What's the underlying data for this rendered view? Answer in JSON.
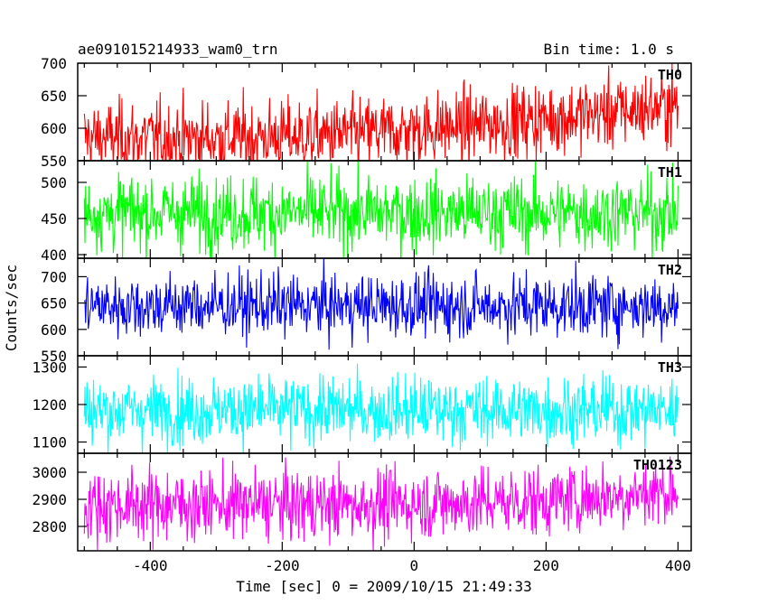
{
  "header": {
    "title": "ae091015214933_wam0_trn",
    "bin_time": "Bin time: 1.0 s"
  },
  "axes": {
    "xlabel": "Time [sec] 0 = 2009/10/15 21:49:33",
    "ylabel": "Counts/sec"
  },
  "chart_data": {
    "type": "line",
    "title": "ae091015214933_wam0_trn",
    "xlabel": "Time [sec] 0 = 2009/10/15 21:49:33",
    "ylabel": "Counts/sec",
    "xlim": [
      -510,
      420
    ],
    "x_ticks": [
      -400,
      -200,
      0,
      200,
      400
    ],
    "x_range": [
      -500,
      400
    ],
    "bin_time_s": 1.0,
    "grid": false,
    "panels": [
      {
        "name": "TH0",
        "color": "#ff0000",
        "ylim": [
          550,
          700
        ],
        "y_ticks": [
          550,
          600,
          650,
          700
        ],
        "trend_x": [
          -500,
          -300,
          -100,
          100,
          300,
          400
        ],
        "trend_y": [
          585,
          585,
          590,
          605,
          625,
          635
        ],
        "spread": 28
      },
      {
        "name": "TH1",
        "color": "#00ff00",
        "ylim": [
          395,
          530
        ],
        "y_ticks": [
          400,
          450,
          500
        ],
        "trend_x": [
          -500,
          400
        ],
        "trend_y": [
          458,
          458
        ],
        "spread": 26
      },
      {
        "name": "TH2",
        "color": "#0000ff",
        "ylim": [
          550,
          735
        ],
        "y_ticks": [
          550,
          600,
          650,
          700
        ],
        "trend_x": [
          -500,
          400
        ],
        "trend_y": [
          645,
          645
        ],
        "spread": 30
      },
      {
        "name": "TH3",
        "color": "#00ffff",
        "ylim": [
          1070,
          1330
        ],
        "y_ticks": [
          1100,
          1200,
          1300
        ],
        "trend_x": [
          -500,
          400
        ],
        "trend_y": [
          1185,
          1185
        ],
        "spread": 45
      },
      {
        "name": "TH0123",
        "color": "#ff00ff",
        "ylim": [
          2710,
          3070
        ],
        "y_ticks": [
          2800,
          2900,
          3000
        ],
        "trend_x": [
          -500,
          -100,
          200,
          400
        ],
        "trend_y": [
          2880,
          2880,
          2895,
          2935
        ],
        "spread": 65
      }
    ]
  }
}
